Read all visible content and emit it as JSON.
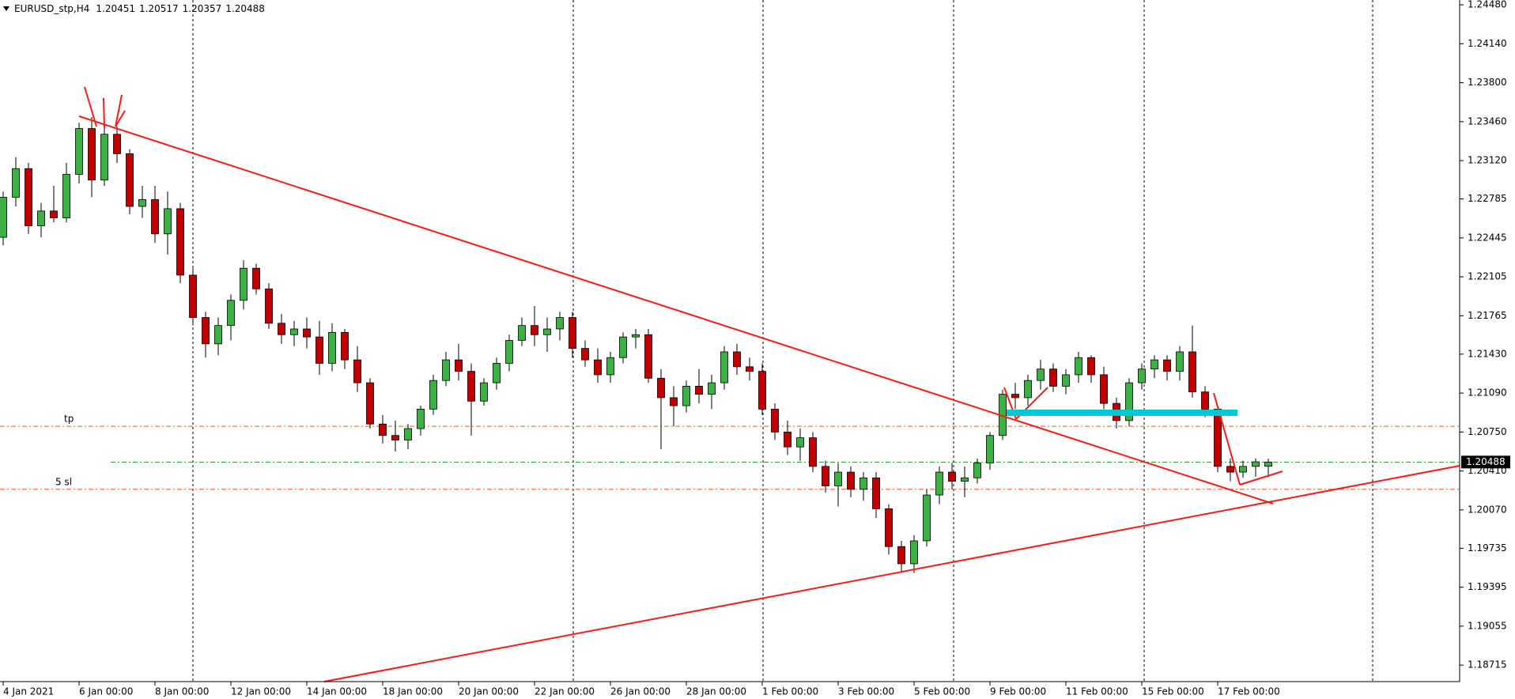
{
  "chart_data": {
    "type": "candlestick",
    "symbol": "EURUSD_stp,H4",
    "up_color": "#3cb043",
    "down_color": "#c00000",
    "bid_color": "#1f9a1f",
    "level_color": "#ff5a1f",
    "categories": [
      "4 Jan 2021",
      null,
      null,
      null,
      null,
      null,
      "6 Jan 00:00",
      null,
      null,
      null,
      null,
      null,
      "8 Jan 00:00",
      null,
      null,
      null,
      null,
      null,
      "12 Jan 00:00",
      null,
      null,
      null,
      null,
      null,
      "14 Jan 00:00",
      null,
      null,
      null,
      null,
      null,
      "18 Jan 00:00",
      null,
      null,
      null,
      null,
      null,
      "20 Jan 00:00",
      null,
      null,
      null,
      null,
      null,
      "22 Jan 00:00",
      null,
      null,
      null,
      null,
      null,
      "26 Jan 00:00",
      null,
      null,
      null,
      null,
      null,
      "28 Jan 00:00",
      null,
      null,
      null,
      null,
      null,
      "1 Feb 00:00",
      null,
      null,
      null,
      null,
      null,
      "3 Feb 00:00",
      null,
      null,
      null,
      null,
      null,
      "5 Feb 00:00",
      null,
      null,
      null,
      null,
      null,
      "9 Feb 00:00",
      null,
      null,
      null,
      null,
      null,
      "11 Feb 00:00",
      null,
      null,
      null,
      null,
      null,
      "15 Feb 00:00",
      null,
      null,
      null,
      null,
      null,
      "17 Feb 00:00",
      null,
      null,
      null,
      null
    ],
    "open": [
      1.2245,
      1.228,
      1.2305,
      1.2255,
      1.2268,
      1.2262,
      1.23,
      1.234,
      1.2295,
      1.2335,
      1.2318,
      1.2272,
      1.2278,
      1.2248,
      1.227,
      1.2212,
      1.2175,
      1.2152,
      1.2168,
      1.219,
      1.2218,
      1.22,
      1.217,
      1.216,
      1.2165,
      1.2158,
      1.2135,
      1.2162,
      1.2138,
      1.2118,
      1.2082,
      1.2072,
      1.2068,
      1.2078,
      1.2095,
      1.212,
      1.2138,
      1.2128,
      1.2102,
      1.2118,
      1.2135,
      1.2155,
      1.2168,
      1.216,
      1.2165,
      1.2175,
      1.2148,
      1.2138,
      1.2125,
      1.214,
      1.2158,
      1.216,
      1.2122,
      1.2105,
      1.2098,
      1.2115,
      1.2108,
      1.2118,
      1.2145,
      1.2132,
      1.2128,
      1.2095,
      1.2075,
      1.2062,
      1.207,
      1.2045,
      1.2028,
      1.204,
      1.2025,
      1.2035,
      1.2008,
      1.1975,
      1.196,
      1.198,
      1.202,
      1.204,
      1.2032,
      1.2035,
      1.2048,
      1.2072,
      1.2108,
      1.2105,
      1.212,
      1.213,
      1.2115,
      1.2125,
      1.214,
      1.2125,
      1.21,
      1.2085,
      1.2118,
      1.213,
      1.2138,
      1.2128,
      1.2145,
      1.211,
      1.2095,
      1.2045,
      1.204,
      1.2045,
      1.20451
    ],
    "high": [
      1.2285,
      1.2315,
      1.231,
      1.2275,
      1.229,
      1.231,
      1.2345,
      1.235,
      1.2345,
      1.2342,
      1.2322,
      1.229,
      1.229,
      1.2285,
      1.2275,
      1.2218,
      1.218,
      1.2175,
      1.2195,
      1.2225,
      1.2222,
      1.2205,
      1.2178,
      1.2172,
      1.2175,
      1.2172,
      1.217,
      1.2165,
      1.215,
      1.2122,
      1.209,
      1.2085,
      1.2082,
      1.2098,
      1.2125,
      1.2145,
      1.2152,
      1.2135,
      1.2122,
      1.214,
      1.216,
      1.2175,
      1.2185,
      1.2175,
      1.218,
      1.218,
      1.2155,
      1.2148,
      1.2145,
      1.2162,
      1.2165,
      1.2165,
      1.213,
      1.2115,
      1.212,
      1.213,
      1.2125,
      1.215,
      1.2152,
      1.214,
      1.2135,
      1.21,
      1.2085,
      1.2078,
      1.2075,
      1.205,
      1.2048,
      1.2045,
      1.204,
      1.204,
      1.2012,
      1.198,
      1.1985,
      1.2025,
      1.2045,
      1.2048,
      1.2045,
      1.2052,
      1.2075,
      1.2112,
      1.2118,
      1.2125,
      1.2138,
      1.2135,
      1.213,
      1.2145,
      1.2142,
      1.2132,
      1.2105,
      1.2122,
      1.2135,
      1.2142,
      1.2142,
      1.215,
      1.2168,
      1.2115,
      1.2098,
      1.2052,
      1.205,
      1.2052,
      1.20517
    ],
    "low": [
      1.2238,
      1.2272,
      1.2248,
      1.2245,
      1.2258,
      1.2258,
      1.2292,
      1.228,
      1.229,
      1.231,
      1.2265,
      1.2262,
      1.224,
      1.223,
      1.2205,
      1.2168,
      1.214,
      1.2142,
      1.2155,
      1.2182,
      1.2195,
      1.2165,
      1.2152,
      1.215,
      1.2148,
      1.2125,
      1.2128,
      1.213,
      1.211,
      1.2078,
      1.2065,
      1.2058,
      1.206,
      1.2072,
      1.209,
      1.2115,
      1.212,
      1.2072,
      1.2098,
      1.2112,
      1.2128,
      1.215,
      1.215,
      1.2145,
      1.2155,
      1.214,
      1.2132,
      1.2118,
      1.2118,
      1.2135,
      1.2148,
      1.2118,
      1.206,
      1.208,
      1.2092,
      1.21,
      1.2095,
      1.2112,
      1.2125,
      1.212,
      1.209,
      1.2068,
      1.2055,
      1.205,
      1.204,
      1.2022,
      1.201,
      1.2018,
      1.2015,
      1.2,
      1.1968,
      1.1952,
      1.1952,
      1.1975,
      1.2012,
      1.2025,
      1.2018,
      1.203,
      1.2042,
      1.2068,
      1.2095,
      1.2098,
      1.2112,
      1.211,
      1.2108,
      1.2118,
      1.2118,
      1.2095,
      1.2078,
      1.208,
      1.2112,
      1.2122,
      1.212,
      1.212,
      1.2105,
      1.2088,
      1.204,
      1.2032,
      1.2035,
      1.2036,
      1.20357
    ],
    "close": [
      1.228,
      1.2305,
      1.2255,
      1.2268,
      1.2262,
      1.23,
      1.234,
      1.2295,
      1.2335,
      1.2318,
      1.2272,
      1.2278,
      1.2248,
      1.227,
      1.2212,
      1.2175,
      1.2152,
      1.2168,
      1.219,
      1.2218,
      1.22,
      1.217,
      1.216,
      1.2165,
      1.2158,
      1.2135,
      1.2162,
      1.2138,
      1.2118,
      1.2082,
      1.2072,
      1.2068,
      1.2078,
      1.2095,
      1.212,
      1.2138,
      1.2128,
      1.2102,
      1.2118,
      1.2135,
      1.2155,
      1.2168,
      1.216,
      1.2165,
      1.2175,
      1.2148,
      1.2138,
      1.2125,
      1.214,
      1.2158,
      1.216,
      1.2122,
      1.2105,
      1.2098,
      1.2115,
      1.2108,
      1.2118,
      1.2145,
      1.2132,
      1.2128,
      1.2095,
      1.2075,
      1.2062,
      1.207,
      1.2045,
      1.2028,
      1.204,
      1.2025,
      1.2035,
      1.2008,
      1.1975,
      1.196,
      1.198,
      1.202,
      1.204,
      1.2032,
      1.2035,
      1.2048,
      1.2072,
      1.2108,
      1.2105,
      1.212,
      1.213,
      1.2115,
      1.2125,
      1.214,
      1.2125,
      1.21,
      1.2085,
      1.2118,
      1.213,
      1.2138,
      1.2128,
      1.2145,
      1.211,
      1.2095,
      1.2045,
      1.204,
      1.2045,
      1.2049,
      1.20488
    ],
    "levels": [
      {
        "label": "tp",
        "value": 1.208
      },
      {
        "label": "5 sl",
        "value": 1.2025
      }
    ],
    "ylim": [
      1.18571,
      1.24522
    ],
    "yticks": [
      {
        "value": 1.2448,
        "label": "1.24480"
      },
      {
        "value": 1.2414,
        "label": "1.24140"
      },
      {
        "value": 1.238,
        "label": "1.23800"
      },
      {
        "value": 1.2346,
        "label": "1.23460"
      },
      {
        "value": 1.2312,
        "label": "1.23120"
      },
      {
        "value": 1.22785,
        "label": "1.22785"
      },
      {
        "value": 1.22445,
        "label": "1.22445"
      },
      {
        "value": 1.22105,
        "label": "1.22105"
      },
      {
        "value": 1.21765,
        "label": "1.21765"
      },
      {
        "value": 1.2143,
        "label": "1.21430"
      },
      {
        "value": 1.2109,
        "label": "1.21090"
      },
      {
        "value": 1.2075,
        "label": "1.20750"
      },
      {
        "value": 1.2041,
        "label": "1.20410"
      },
      {
        "value": 1.2007,
        "label": "1.20070"
      },
      {
        "value": 1.19735,
        "label": "1.19735"
      },
      {
        "value": 1.19395,
        "label": "1.19395"
      },
      {
        "value": 1.19055,
        "label": "1.19055"
      },
      {
        "value": 1.18715,
        "label": "1.18715"
      }
    ]
  }
}
